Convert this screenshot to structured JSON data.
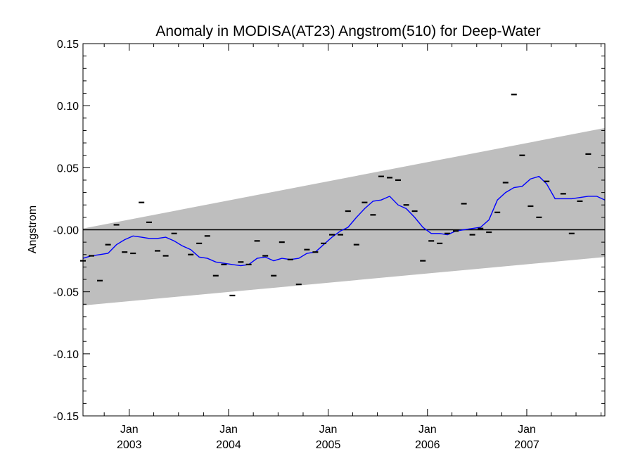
{
  "chart_data": {
    "type": "line",
    "title": "Anomaly in MODISA(AT23) Angstrom(510) for Deep-Water",
    "ylabel": "Angstrom",
    "xlabel": "",
    "xlim": [
      "2002-07-15",
      "2007-10-15"
    ],
    "ylim": [
      -0.15,
      0.15
    ],
    "y_ticks": [
      0.15,
      0.1,
      0.05,
      0.0,
      -0.05,
      -0.1,
      -0.15
    ],
    "y_tick_labels": [
      "0.15",
      "0.10",
      "0.05",
      "-0.00",
      "-0.05",
      "-0.10",
      "-0.15"
    ],
    "x_ticks": [
      {
        "date": "2003-01-01",
        "month": "Jan",
        "year": "2003"
      },
      {
        "date": "2004-01-01",
        "month": "Jan",
        "year": "2004"
      },
      {
        "date": "2005-01-01",
        "month": "Jan",
        "year": "2005"
      },
      {
        "date": "2006-01-01",
        "month": "Jan",
        "year": "2006"
      },
      {
        "date": "2007-01-01",
        "month": "Jan",
        "year": "2007"
      }
    ],
    "zero_line": 0.0,
    "band": {
      "start_date": "2002-07-15",
      "end_date": "2007-10-15",
      "upper": [
        0.001,
        0.082
      ],
      "lower": [
        -0.061,
        -0.022
      ],
      "color": "#bebebe"
    },
    "series": [
      {
        "kind": "points",
        "color": "#000000",
        "x": [
          "2002-07-15",
          "2002-08-15",
          "2002-09-15",
          "2002-10-15",
          "2002-11-15",
          "2002-12-15",
          "2003-01-15",
          "2003-02-15",
          "2003-03-15",
          "2003-04-15",
          "2003-05-15",
          "2003-06-15",
          "2003-07-15",
          "2003-08-15",
          "2003-09-15",
          "2003-10-15",
          "2003-11-15",
          "2003-12-15",
          "2004-01-15",
          "2004-02-15",
          "2004-03-15",
          "2004-04-15",
          "2004-05-15",
          "2004-06-15",
          "2004-07-15",
          "2004-08-15",
          "2004-09-15",
          "2004-10-15",
          "2004-11-15",
          "2004-12-15",
          "2005-01-15",
          "2005-02-15",
          "2005-03-15",
          "2005-04-15",
          "2005-05-15",
          "2005-06-15",
          "2005-07-15",
          "2005-08-15",
          "2005-09-15",
          "2005-10-15",
          "2005-11-15",
          "2005-12-15",
          "2006-01-15",
          "2006-02-15",
          "2006-03-15",
          "2006-04-15",
          "2006-05-15",
          "2006-06-15",
          "2006-07-15",
          "2006-08-15",
          "2006-09-15",
          "2006-10-15",
          "2006-11-15",
          "2006-12-15",
          "2007-01-15",
          "2007-02-15",
          "2007-03-15",
          "2007-04-15",
          "2007-05-15",
          "2007-06-15",
          "2007-07-15",
          "2007-08-15",
          "2007-09-15",
          "2007-10-15"
        ],
        "y": [
          -0.025,
          -0.021,
          -0.041,
          -0.012,
          0.004,
          -0.018,
          -0.019,
          0.022,
          0.006,
          -0.017,
          -0.021,
          -0.003,
          null,
          -0.02,
          -0.011,
          -0.005,
          -0.037,
          -0.028,
          -0.053,
          -0.026,
          -0.028,
          -0.009,
          -0.021,
          -0.037,
          -0.01,
          -0.024,
          -0.044,
          -0.016,
          -0.018,
          -0.011,
          -0.004,
          -0.004,
          0.015,
          -0.012,
          0.022,
          0.012,
          0.043,
          0.042,
          0.04,
          0.02,
          0.015,
          -0.025,
          -0.009,
          -0.011,
          -0.003,
          -0.001,
          0.021,
          -0.004,
          0.001,
          -0.002,
          0.014,
          0.038,
          0.109,
          0.06,
          0.019,
          0.01,
          0.039,
          null,
          0.029,
          -0.003,
          0.023,
          0.061,
          null,
          null
        ]
      },
      {
        "kind": "line",
        "color": "#0000ff",
        "x": [
          "2002-07-15",
          "2002-08-15",
          "2002-09-15",
          "2002-10-15",
          "2002-11-15",
          "2002-12-15",
          "2003-01-15",
          "2003-02-15",
          "2003-03-15",
          "2003-04-15",
          "2003-05-15",
          "2003-06-15",
          "2003-07-15",
          "2003-08-15",
          "2003-09-15",
          "2003-10-15",
          "2003-11-15",
          "2003-12-15",
          "2004-01-15",
          "2004-02-15",
          "2004-03-15",
          "2004-04-15",
          "2004-05-15",
          "2004-06-15",
          "2004-07-15",
          "2004-08-15",
          "2004-09-15",
          "2004-10-15",
          "2004-11-15",
          "2004-12-15",
          "2005-01-15",
          "2005-02-15",
          "2005-03-15",
          "2005-04-15",
          "2005-05-15",
          "2005-06-15",
          "2005-07-15",
          "2005-08-15",
          "2005-09-15",
          "2005-10-15",
          "2005-11-15",
          "2005-12-15",
          "2006-01-15",
          "2006-02-15",
          "2006-03-15",
          "2006-04-15",
          "2006-05-15",
          "2006-06-15",
          "2006-07-15",
          "2006-08-15",
          "2006-09-15",
          "2006-10-15",
          "2006-11-15",
          "2006-12-15",
          "2007-01-15",
          "2007-02-15",
          "2007-03-15",
          "2007-04-15",
          "2007-05-15",
          "2007-06-15",
          "2007-07-15",
          "2007-08-15",
          "2007-09-15",
          "2007-10-15"
        ],
        "y": [
          -0.023,
          -0.021,
          -0.02,
          -0.019,
          -0.012,
          -0.008,
          -0.005,
          -0.006,
          -0.007,
          -0.007,
          -0.006,
          -0.009,
          -0.013,
          -0.016,
          -0.022,
          -0.023,
          -0.026,
          -0.027,
          -0.028,
          -0.029,
          -0.028,
          -0.023,
          -0.022,
          -0.025,
          -0.023,
          -0.024,
          -0.023,
          -0.019,
          -0.018,
          -0.012,
          -0.006,
          -0.001,
          0.002,
          0.01,
          0.017,
          0.023,
          0.024,
          0.027,
          0.02,
          0.017,
          0.01,
          0.002,
          -0.003,
          -0.003,
          -0.004,
          -0.001,
          0.0,
          0.001,
          0.002,
          0.008,
          0.024,
          0.03,
          0.034,
          0.035,
          0.041,
          0.043,
          0.037,
          0.025,
          0.025,
          0.025,
          0.026,
          0.027,
          0.027,
          0.024
        ]
      }
    ],
    "grid": false,
    "legend": "none"
  }
}
